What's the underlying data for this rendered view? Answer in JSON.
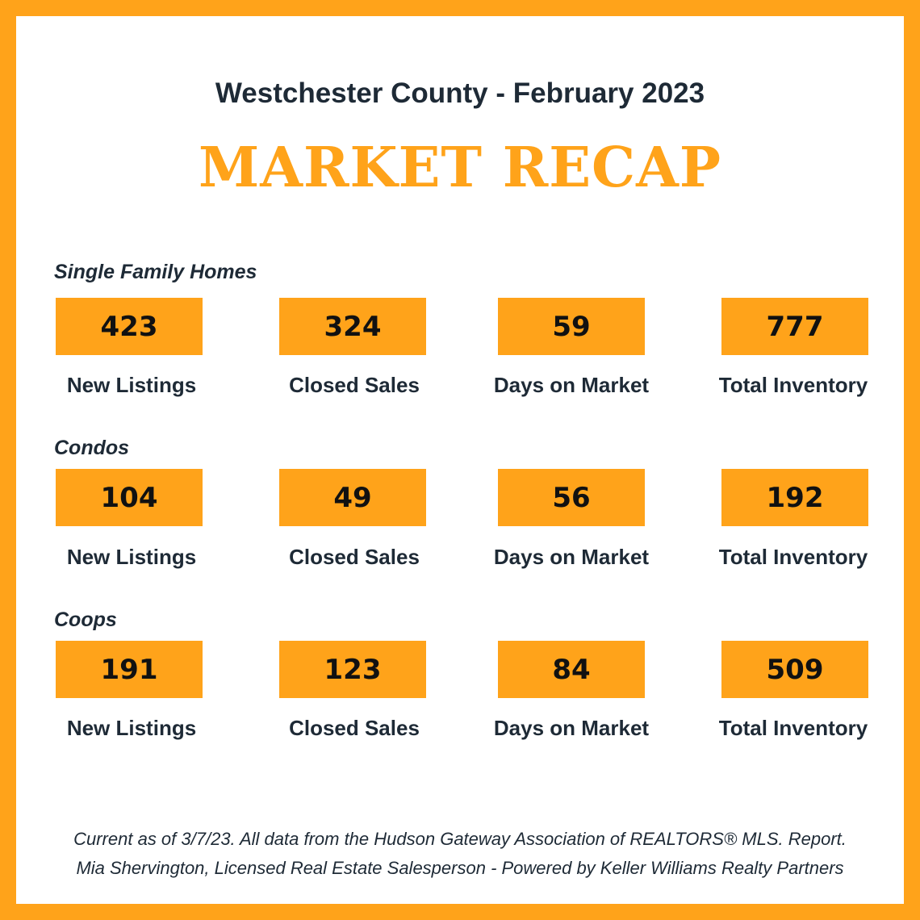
{
  "header": {
    "subtitle": "Westchester County - February 2023",
    "title": "MARKET RECAP"
  },
  "colors": {
    "accent": "#ffa31a",
    "text": "#1e2a36"
  },
  "sections": [
    {
      "label": "Single Family Homes",
      "stats": [
        {
          "value": "423",
          "label": "New Listings"
        },
        {
          "value": "324",
          "label": "Closed Sales"
        },
        {
          "value": "59",
          "label": "Days on Market"
        },
        {
          "value": "777",
          "label": "Total Inventory"
        }
      ]
    },
    {
      "label": "Condos",
      "stats": [
        {
          "value": "104",
          "label": "New Listings"
        },
        {
          "value": "49",
          "label": "Closed Sales"
        },
        {
          "value": "56",
          "label": "Days on Market"
        },
        {
          "value": "192",
          "label": "Total Inventory"
        }
      ]
    },
    {
      "label": "Coops",
      "stats": [
        {
          "value": "191",
          "label": "New Listings"
        },
        {
          "value": "123",
          "label": "Closed Sales"
        },
        {
          "value": "84",
          "label": "Days on Market"
        },
        {
          "value": "509",
          "label": "Total Inventory"
        }
      ]
    }
  ],
  "footer": {
    "line1": "Current as of 3/7/23. All data from the Hudson Gateway Association of REALTORS® MLS. Report.",
    "line2": "Mia Shervington, Licensed Real Estate Salesperson - Powered by Keller Williams Realty Partners"
  }
}
